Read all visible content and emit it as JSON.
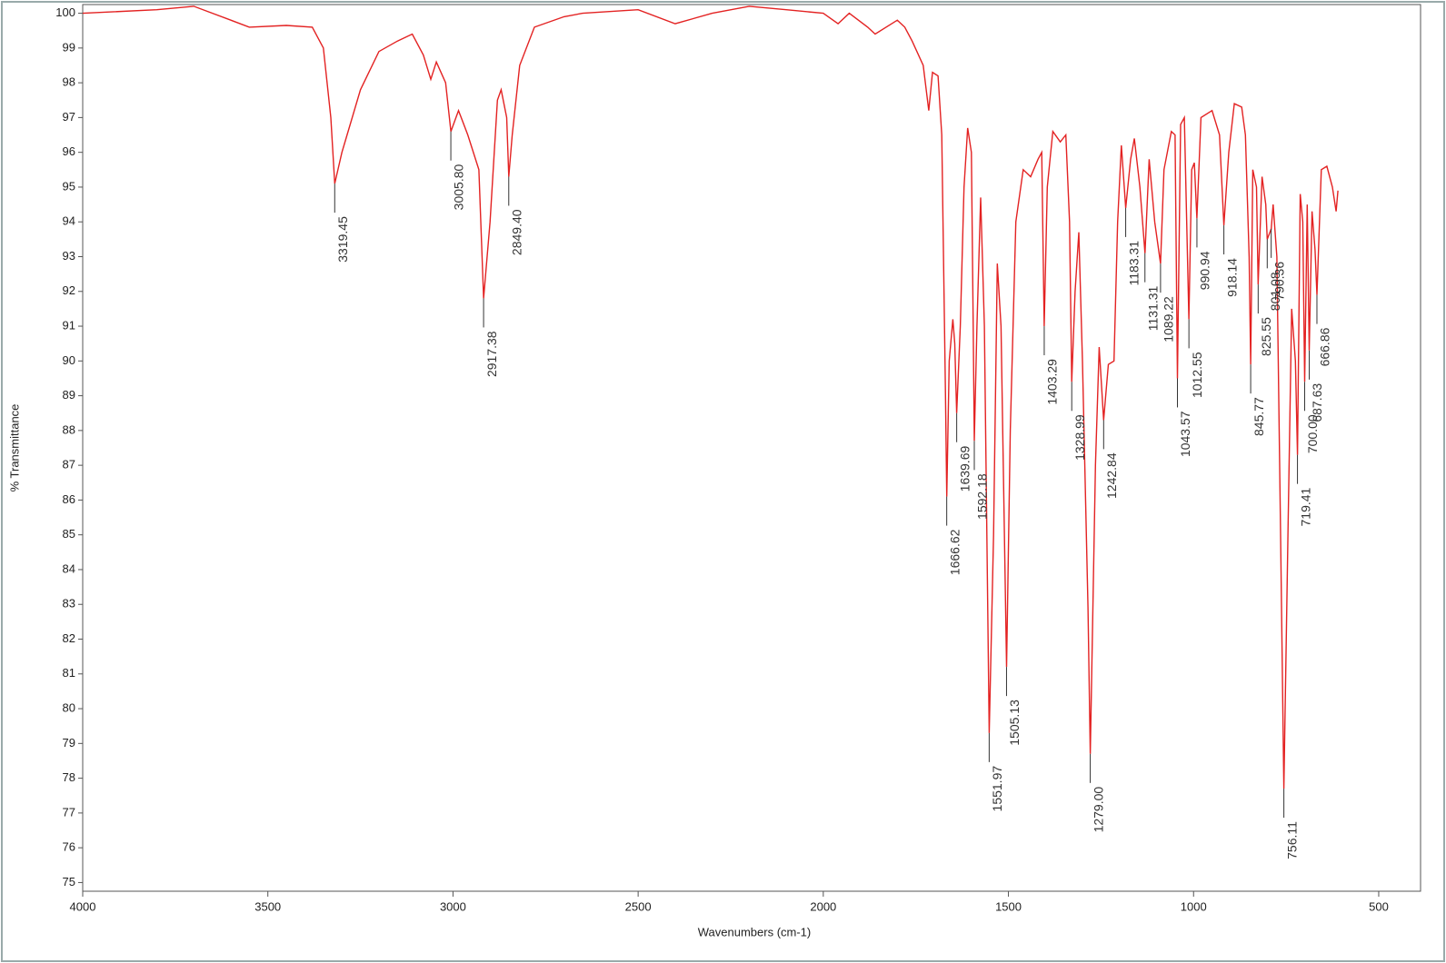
{
  "chart_data": {
    "type": "line",
    "xlabel": "Wavenumbers (cm-1)",
    "ylabel": "% Transmittance",
    "color": "#e32222",
    "x": [
      4000,
      3800,
      3700,
      3600,
      3550,
      3450,
      3380,
      3350,
      3330,
      3319.45,
      3300,
      3250,
      3200,
      3150,
      3110,
      3080,
      3060,
      3045,
      3020,
      3005.8,
      2985,
      2960,
      2930,
      2917.38,
      2900,
      2880,
      2870,
      2855,
      2849.4,
      2840,
      2820,
      2780,
      2700,
      2650,
      2500,
      2400,
      2300,
      2200,
      2100,
      2000,
      1960,
      1930,
      1880,
      1860,
      1800,
      1780,
      1760,
      1730,
      1715,
      1705,
      1690,
      1680,
      1670,
      1666.62,
      1660,
      1650,
      1645,
      1639.69,
      1630,
      1620,
      1610,
      1600,
      1595,
      1592.18,
      1585,
      1575,
      1565,
      1551.97,
      1540,
      1530,
      1520,
      1505.13,
      1495,
      1480,
      1460,
      1440,
      1420,
      1410,
      1403.29,
      1395,
      1380,
      1360,
      1345,
      1335,
      1328.99,
      1320,
      1310,
      1300,
      1285,
      1279,
      1265,
      1255,
      1242.84,
      1230,
      1215,
      1205,
      1195,
      1183.31,
      1170,
      1160,
      1145,
      1131.31,
      1120,
      1105,
      1089.22,
      1080,
      1060,
      1050,
      1043.57,
      1035,
      1025,
      1012.55,
      1005,
      998,
      990.94,
      980,
      950,
      930,
      918.14,
      905,
      890,
      870,
      860,
      850,
      845.77,
      840,
      830,
      825.55,
      815,
      805,
      801.08,
      790.36,
      785,
      775,
      765,
      756.11,
      745,
      735,
      725,
      719.41,
      712,
      705,
      700,
      693,
      687.63,
      680,
      672,
      666.86,
      655,
      640,
      625,
      615,
      610
    ],
    "values": [
      100.0,
      100.1,
      100.2,
      99.8,
      99.6,
      99.65,
      99.6,
      99.0,
      97,
      95.1,
      96.0,
      97.8,
      98.9,
      99.2,
      99.4,
      98.8,
      98.1,
      98.6,
      98.0,
      96.6,
      97.2,
      96.5,
      95.5,
      91.8,
      94,
      97.5,
      97.8,
      97,
      95.3,
      96.5,
      98.5,
      99.6,
      99.9,
      100.0,
      100.1,
      99.7,
      100.0,
      100.2,
      100.1,
      100.0,
      99.7,
      100.0,
      99.6,
      99.4,
      99.8,
      99.6,
      99.2,
      98.5,
      97.2,
      98.3,
      98.2,
      96.5,
      89,
      86.1,
      90,
      91.2,
      90.5,
      88.5,
      91,
      95,
      96.7,
      96,
      91,
      87.7,
      91,
      94.7,
      91,
      79.3,
      85,
      92.8,
      91,
      81.2,
      88,
      94,
      95.5,
      95.3,
      95.8,
      96,
      91.0,
      95,
      96.6,
      96.3,
      96.5,
      94,
      89.4,
      92,
      93.7,
      90,
      82.9,
      78.7,
      87,
      90.4,
      88.3,
      89.9,
      90,
      94,
      96.2,
      94.4,
      95.8,
      96.4,
      95,
      93.1,
      95.8,
      94,
      92.8,
      95.5,
      96.6,
      96.5,
      89.5,
      96.8,
      97,
      91.2,
      95.5,
      95.7,
      94.1,
      97,
      97.2,
      96.5,
      93.9,
      96,
      97.4,
      97.3,
      96.5,
      93,
      89.9,
      95.5,
      95,
      92.2,
      95.3,
      94.5,
      93.5,
      93.8,
      94.5,
      93,
      85,
      77.7,
      85,
      91.5,
      90,
      87.3,
      94.8,
      94,
      89.4,
      94.5,
      90.3,
      94.3,
      93.2,
      91.9,
      95.5,
      95.6,
      95,
      94.3,
      94.9
    ],
    "xlim": [
      4000,
      387
    ],
    "ylim": [
      74.75,
      100.25
    ],
    "xticks": [
      4000,
      3500,
      3000,
      2500,
      2000,
      1500,
      1000,
      500
    ],
    "yticks": [
      75,
      76,
      77,
      78,
      79,
      80,
      81,
      82,
      83,
      84,
      85,
      86,
      87,
      88,
      89,
      90,
      91,
      92,
      93,
      94,
      95,
      96,
      97,
      98,
      99,
      100
    ],
    "annotations": [
      3319.45,
      {
        "value": 3005.8,
        "label": "3005.80"
      },
      2917.38,
      {
        "value": 2849.4,
        "label": "2849.40"
      },
      1666.62,
      1639.69,
      1592.18,
      1551.97,
      1505.13,
      1403.29,
      1328.99,
      {
        "value": 1279,
        "label": "1279.00"
      },
      1242.84,
      1183.31,
      1131.31,
      1089.22,
      1043.57,
      1012.55,
      990.94,
      918.14,
      845.77,
      825.55,
      801.08,
      790.36,
      756.11,
      719.41,
      {
        "value": 700,
        "label": "700.00"
      },
      687.63,
      666.86
    ]
  }
}
